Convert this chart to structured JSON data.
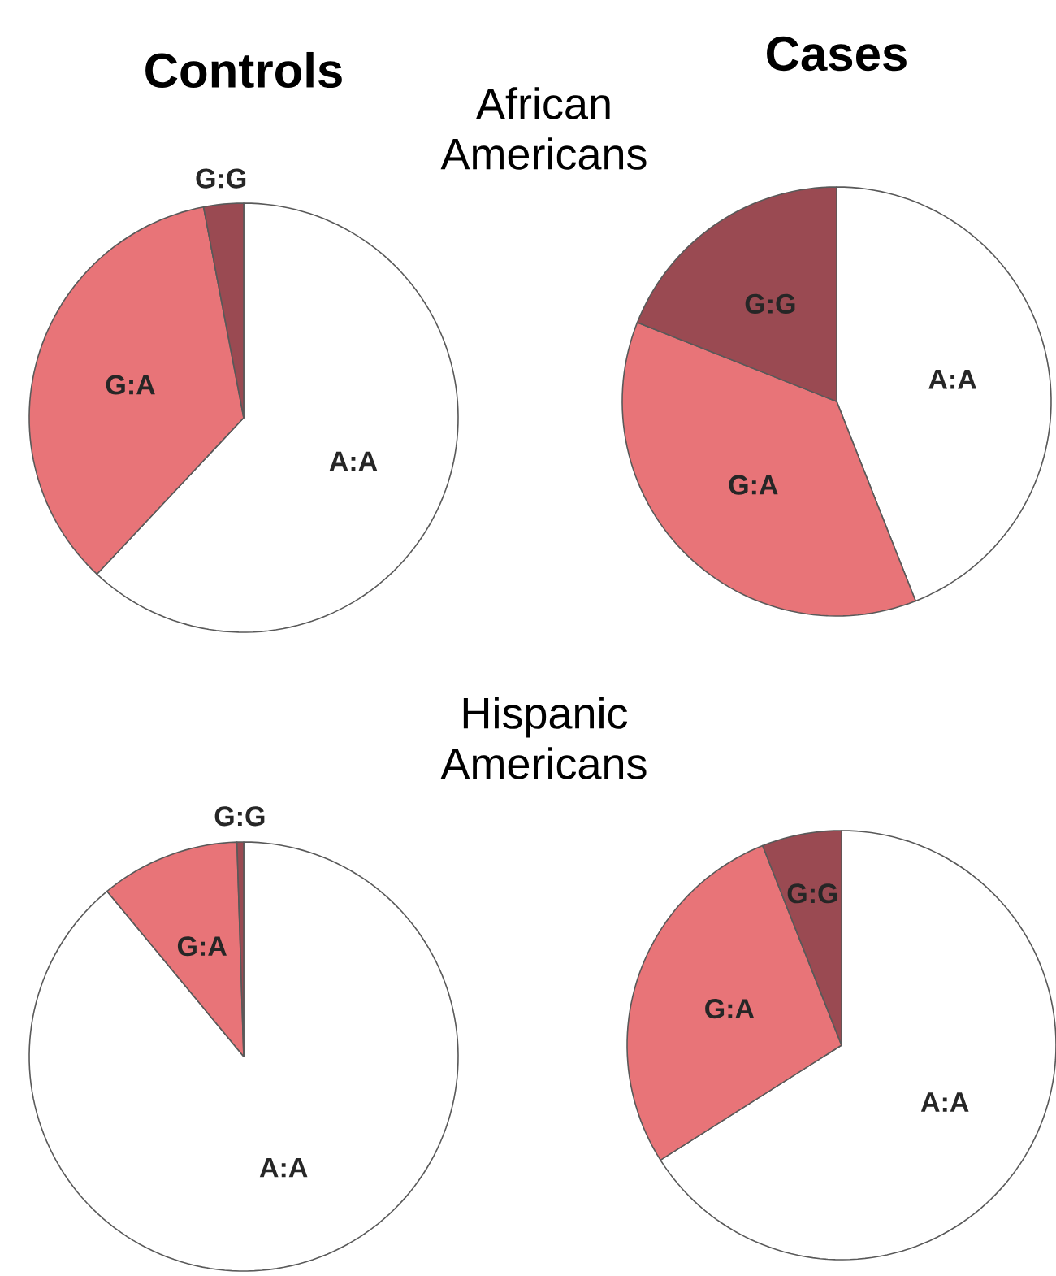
{
  "chart_data": [
    {
      "type": "pie",
      "title": "Controls",
      "subtitle": "African Americans",
      "categories": [
        "A:A",
        "G:A",
        "G:G"
      ],
      "values": [
        62,
        35,
        3
      ],
      "colors": [
        "#ffffff",
        "#e87478",
        "#9a4a52"
      ]
    },
    {
      "type": "pie",
      "title": "Cases",
      "categories": [
        "A:A",
        "G:A",
        "G:G"
      ],
      "values": [
        44,
        37,
        19
      ],
      "colors": [
        "#ffffff",
        "#e87478",
        "#9a4a52"
      ]
    },
    {
      "type": "pie",
      "subtitle": "Hispanic Americans",
      "categories": [
        "A:A",
        "G:A",
        "G:G"
      ],
      "values": [
        89,
        10.5,
        0.5
      ],
      "colors": [
        "#ffffff",
        "#e87478",
        "#9a4a52"
      ]
    },
    {
      "type": "pie",
      "categories": [
        "A:A",
        "G:A",
        "G:G"
      ],
      "values": [
        66,
        28,
        6
      ],
      "colors": [
        "#ffffff",
        "#e87478",
        "#9a4a52"
      ]
    }
  ]
}
